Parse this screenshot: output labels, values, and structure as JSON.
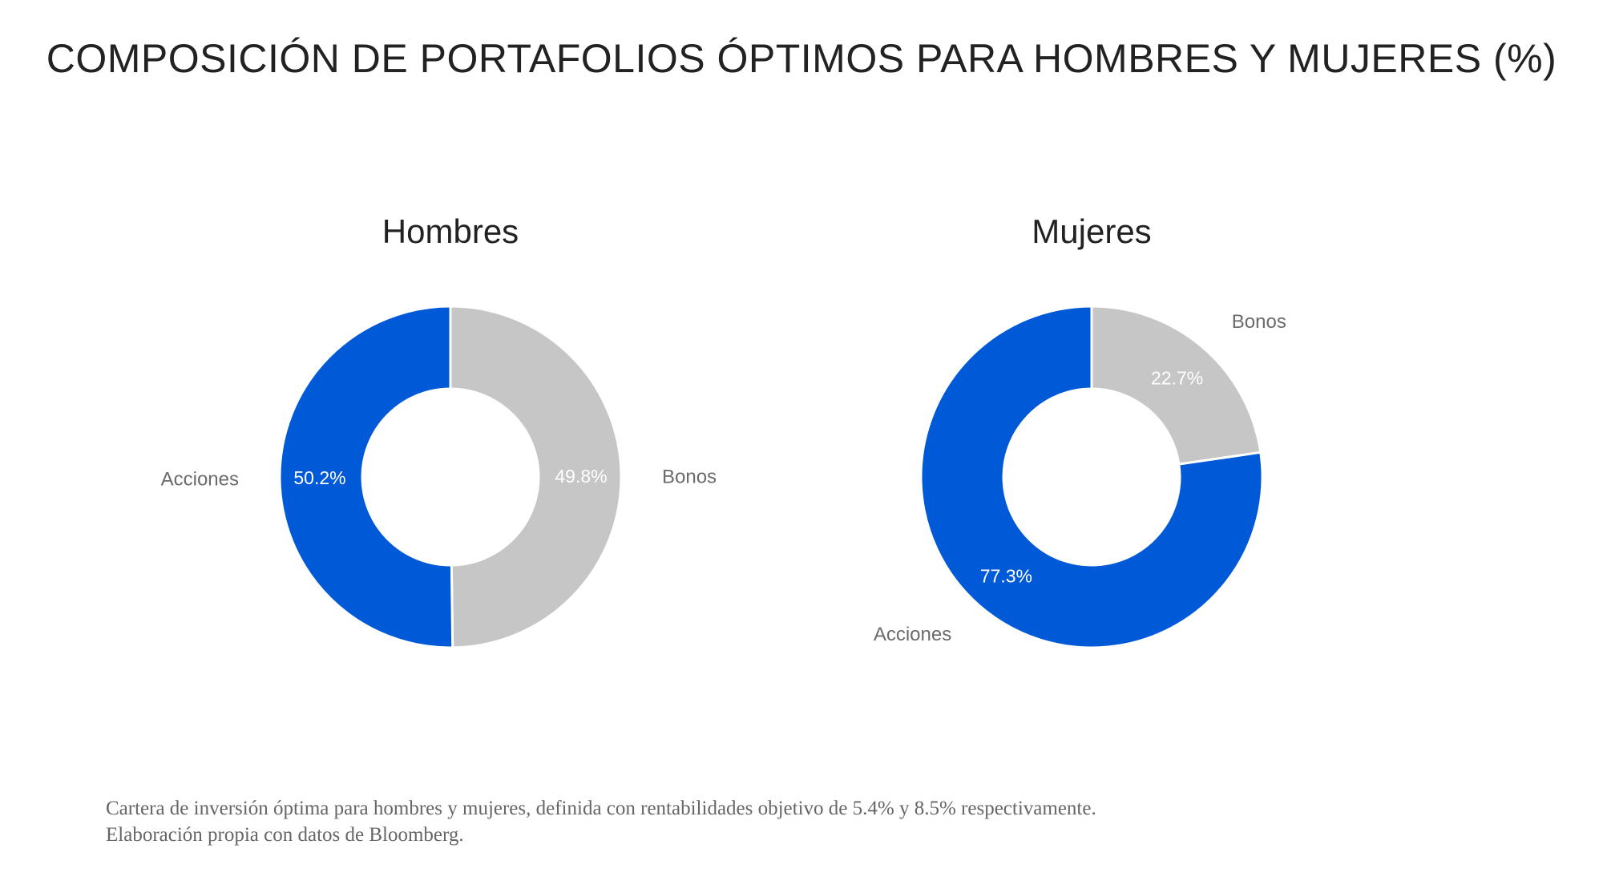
{
  "title": "COMPOSICIÓN DE PORTAFOLIOS ÓPTIMOS PARA HOMBRES Y MUJERES (%)",
  "colors": {
    "acciones": "#0059d6",
    "bonos": "#c6c6c6"
  },
  "chart_data": [
    {
      "type": "pie",
      "title": "Hombres",
      "categories": [
        "Acciones",
        "Bonos"
      ],
      "values": [
        50.2,
        49.8
      ],
      "value_labels": [
        "50.2%",
        "49.8%"
      ],
      "colors": [
        "#0059d6",
        "#c6c6c6"
      ]
    },
    {
      "type": "pie",
      "title": "Mujeres",
      "categories": [
        "Acciones",
        "Bonos"
      ],
      "values": [
        77.3,
        22.7
      ],
      "value_labels": [
        "77.3%",
        "22.7%"
      ],
      "colors": [
        "#0059d6",
        "#c6c6c6"
      ]
    }
  ],
  "footnote": {
    "line1": "Cartera de inversión óptima para hombres y mujeres, definida con rentabilidades objetivo de 5.4% y 8.5% respectivamente.",
    "line2": "Elaboración propia con datos de Bloomberg."
  }
}
